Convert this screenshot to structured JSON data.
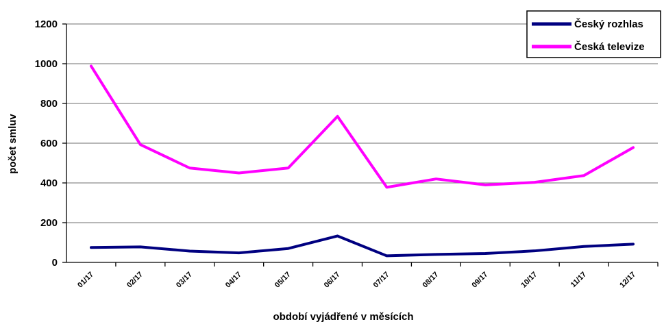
{
  "chart_data": {
    "type": "line",
    "categories": [
      "01/17",
      "02/17",
      "03/17",
      "04/17",
      "05/17",
      "06/17",
      "07/17",
      "08/17",
      "09/17",
      "10/17",
      "11/17",
      "12/17"
    ],
    "series": [
      {
        "name": "Český rozhlas",
        "color": "#000080",
        "values": [
          75,
          78,
          57,
          48,
          70,
          133,
          33,
          40,
          45,
          58,
          80,
          92
        ]
      },
      {
        "name": "Česká televize",
        "color": "#ff00ff",
        "values": [
          988,
          593,
          475,
          450,
          475,
          735,
          378,
          420,
          390,
          403,
          437,
          578
        ]
      }
    ],
    "xlabel": "období vyjádřené v měsících",
    "ylabel": "počet smluv",
    "ylim": [
      0,
      1200
    ],
    "yticks": [
      "0",
      "200",
      "400",
      "600",
      "800",
      "1000",
      "1200"
    ],
    "grid": true,
    "legend_position": "top-right"
  }
}
